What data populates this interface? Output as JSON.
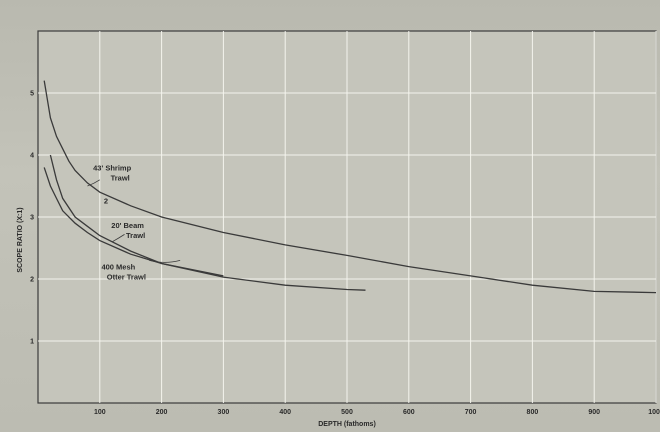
{
  "chart_data": {
    "type": "line",
    "title": "",
    "xlabel": "DEPTH (fathoms)",
    "ylabel": "SCOPE  RATIO (X:1)",
    "xlim": [
      0,
      1000
    ],
    "ylim": [
      0,
      6
    ],
    "grid": true,
    "x_ticks": [
      "100",
      "200",
      "300",
      "400",
      "500",
      "600",
      "700",
      "800",
      "900",
      "1000"
    ],
    "y_ticks": [
      "1",
      "2",
      "3",
      "4",
      "5"
    ],
    "series": [
      {
        "name": "43' Shrimp Trawl",
        "x": [
          10,
          15,
          20,
          30,
          40,
          50,
          60,
          80,
          100,
          150,
          200,
          300,
          400,
          500,
          600,
          700,
          800,
          900,
          1000
        ],
        "y": [
          5.2,
          4.9,
          4.6,
          4.3,
          4.1,
          3.9,
          3.75,
          3.55,
          3.4,
          3.18,
          3.0,
          2.75,
          2.55,
          2.38,
          2.2,
          2.05,
          1.9,
          1.8,
          1.78
        ]
      },
      {
        "name": "20' Beam Trawl",
        "x": [
          20,
          30,
          40,
          60,
          80,
          100,
          150,
          200,
          300
        ],
        "y": [
          4.0,
          3.6,
          3.3,
          3.0,
          2.85,
          2.7,
          2.45,
          2.25,
          2.05
        ]
      },
      {
        "name": "400 Mesh Otter Trawl",
        "x": [
          10,
          20,
          30,
          40,
          60,
          80,
          100,
          150,
          200,
          300,
          400,
          500,
          530
        ],
        "y": [
          3.8,
          3.5,
          3.3,
          3.1,
          2.9,
          2.75,
          2.62,
          2.4,
          2.25,
          2.03,
          1.9,
          1.83,
          1.82
        ]
      }
    ],
    "annotations": [
      {
        "lines": [
          "43' Shrimp",
          "Trawl"
        ]
      },
      {
        "lines": [
          "2"
        ]
      },
      {
        "lines": [
          "20' Beam",
          "Trawl"
        ]
      },
      {
        "lines": [
          "400 Mesh",
          "Otter Trawl"
        ]
      }
    ]
  }
}
